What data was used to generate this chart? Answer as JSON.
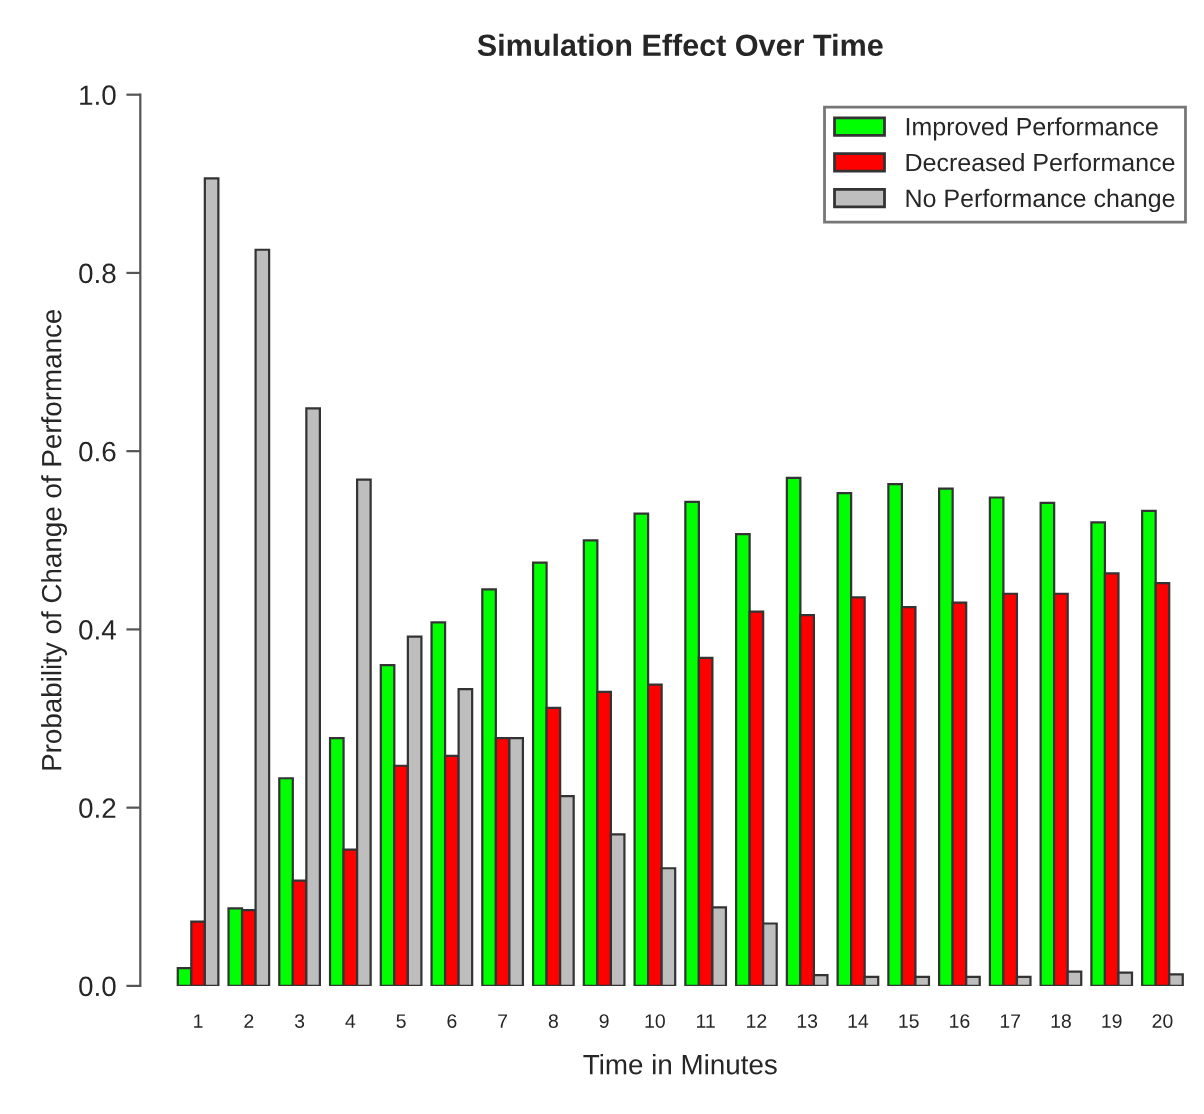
{
  "chart_data": {
    "type": "bar",
    "title": "Simulation Effect Over Time",
    "xlabel": "Time in Minutes",
    "ylabel": "Probability of Change of Performance",
    "categories": [
      "1",
      "2",
      "3",
      "4",
      "5",
      "6",
      "7",
      "8",
      "9",
      "10",
      "11",
      "12",
      "13",
      "14",
      "15",
      "16",
      "17",
      "18",
      "19",
      "20"
    ],
    "series": [
      {
        "name": "Improved Performance",
        "color": "#00ff00",
        "values": [
          0.02,
          0.087,
          0.233,
          0.278,
          0.36,
          0.408,
          0.445,
          0.475,
          0.5,
          0.53,
          0.543,
          0.507,
          0.57,
          0.553,
          0.563,
          0.558,
          0.548,
          0.542,
          0.52,
          0.533
        ]
      },
      {
        "name": "Decreased Performance",
        "color": "#ff0000",
        "values": [
          0.072,
          0.085,
          0.118,
          0.153,
          0.247,
          0.258,
          0.278,
          0.312,
          0.33,
          0.338,
          0.368,
          0.42,
          0.416,
          0.436,
          0.425,
          0.43,
          0.44,
          0.44,
          0.463,
          0.452
        ]
      },
      {
        "name": "No Performance change",
        "color": "#bebebe",
        "values": [
          0.906,
          0.826,
          0.648,
          0.568,
          0.392,
          0.333,
          0.278,
          0.213,
          0.17,
          0.132,
          0.088,
          0.07,
          0.012,
          0.01,
          0.01,
          0.01,
          0.01,
          0.016,
          0.015,
          0.013
        ]
      }
    ],
    "ylim": [
      0,
      1
    ],
    "yticks": [
      {
        "value": 0,
        "label": "0.0"
      },
      0.2,
      0.4,
      0.6,
      0.8,
      {
        "value": 1,
        "label": "1.0"
      }
    ],
    "grid": false,
    "legend": "top right"
  }
}
